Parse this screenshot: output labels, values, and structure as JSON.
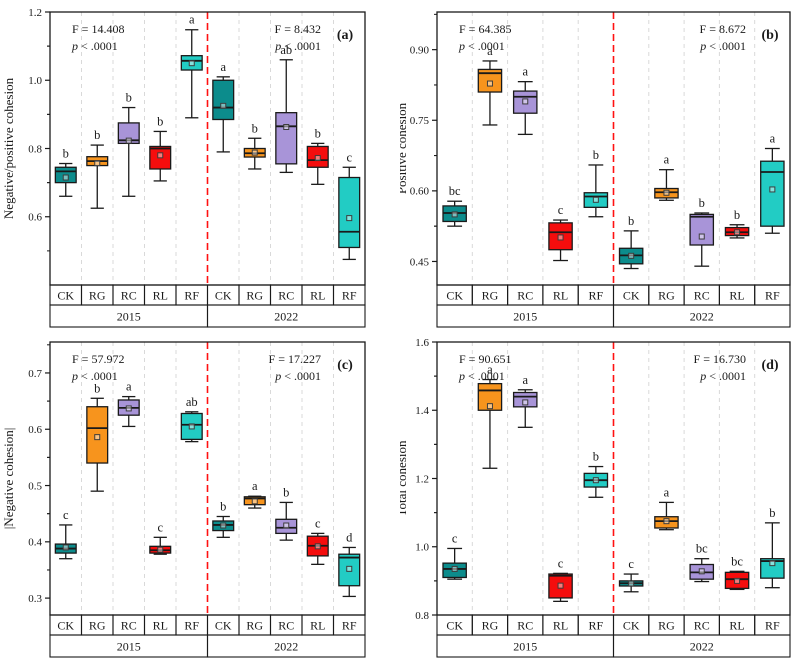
{
  "figure": {
    "background": "#ffffff",
    "treatment_colors": {
      "CK": "#0C8C8C",
      "RG": "#F7941D",
      "RC": "#A894D8",
      "RL": "#F50D0D",
      "RF": "#22CCC4"
    },
    "separator_color": "#FF1111",
    "gridline_color": "#D9D9D9",
    "box_border_color": "#1A1A1A"
  },
  "chart_data": [
    {
      "id": "a",
      "type": "boxplot",
      "panel_label": "(a)",
      "ylabel": "Negative/positive cohesion",
      "ylim": [
        0.4,
        1.2
      ],
      "yticks": [
        0.6,
        0.8,
        1.0,
        1.2
      ],
      "ytick_labels": [
        "0.6",
        "0.8",
        "1.0",
        "1.2"
      ],
      "grid": "vertical-dashed",
      "legend_position": "none",
      "year_groups": [
        "2015",
        "2022"
      ],
      "categories": [
        "CK",
        "RG",
        "RC",
        "RL",
        "RF",
        "CK",
        "RG",
        "RC",
        "RL",
        "RF"
      ],
      "stats_left": {
        "f_label": "F = 14.408",
        "p_label": "p < .0001"
      },
      "stats_right": {
        "f_label": "F = 8.432",
        "p_label": "p < .0001"
      },
      "boxes": [
        {
          "treatment": "CK",
          "year": "2015",
          "whisker_low": 0.66,
          "q1": 0.7,
          "median": 0.733,
          "q3": 0.745,
          "whisker_high": 0.756,
          "mean": 0.715,
          "letter": "b"
        },
        {
          "treatment": "RG",
          "year": "2015",
          "whisker_low": 0.625,
          "q1": 0.75,
          "median": 0.763,
          "q3": 0.776,
          "whisker_high": 0.81,
          "mean": 0.757,
          "letter": "b"
        },
        {
          "treatment": "RC",
          "year": "2015",
          "whisker_low": 0.66,
          "q1": 0.815,
          "median": 0.824,
          "q3": 0.875,
          "whisker_high": 0.92,
          "mean": 0.823,
          "letter": "b"
        },
        {
          "treatment": "RL",
          "year": "2015",
          "whisker_low": 0.705,
          "q1": 0.74,
          "median": 0.8,
          "q3": 0.806,
          "whisker_high": 0.85,
          "mean": 0.78,
          "letter": "b"
        },
        {
          "treatment": "RF",
          "year": "2015",
          "whisker_low": 0.89,
          "q1": 1.03,
          "median": 1.057,
          "q3": 1.072,
          "whisker_high": 1.148,
          "mean": 1.05,
          "letter": "a"
        },
        {
          "treatment": "CK",
          "year": "2022",
          "whisker_low": 0.79,
          "q1": 0.885,
          "median": 0.92,
          "q3": 1.0,
          "whisker_high": 1.01,
          "mean": 0.925,
          "letter": "a"
        },
        {
          "treatment": "RG",
          "year": "2022",
          "whisker_low": 0.74,
          "q1": 0.775,
          "median": 0.786,
          "q3": 0.8,
          "whisker_high": 0.83,
          "mean": 0.788,
          "letter": "b"
        },
        {
          "treatment": "RC",
          "year": "2022",
          "whisker_low": 0.73,
          "q1": 0.755,
          "median": 0.865,
          "q3": 0.905,
          "whisker_high": 1.06,
          "mean": 0.863,
          "letter": "ab"
        },
        {
          "treatment": "RL",
          "year": "2022",
          "whisker_low": 0.695,
          "q1": 0.745,
          "median": 0.766,
          "q3": 0.806,
          "whisker_high": 0.815,
          "mean": 0.772,
          "letter": "b"
        },
        {
          "treatment": "RF",
          "year": "2022",
          "whisker_low": 0.475,
          "q1": 0.51,
          "median": 0.556,
          "q3": 0.715,
          "whisker_high": 0.745,
          "mean": 0.596,
          "letter": "c"
        }
      ]
    },
    {
      "id": "b",
      "type": "boxplot",
      "panel_label": "(b)",
      "ylabel": "Positive cohesion",
      "ylim": [
        0.4,
        0.98
      ],
      "yticks": [
        0.45,
        0.6,
        0.75,
        0.9
      ],
      "ytick_labels": [
        "0.45",
        "0.60",
        "0.75",
        "0.90"
      ],
      "grid": "vertical-dashed",
      "legend_position": "none",
      "year_groups": [
        "2015",
        "2022"
      ],
      "categories": [
        "CK",
        "RG",
        "RC",
        "RL",
        "RF",
        "CK",
        "RG",
        "RC",
        "RL",
        "RF"
      ],
      "stats_left": {
        "f_label": "F = 64.385",
        "p_label": "p < .0001"
      },
      "stats_right": {
        "f_label": "F = 8.672",
        "p_label": "p < .0001"
      },
      "boxes": [
        {
          "treatment": "CK",
          "year": "2015",
          "whisker_low": 0.525,
          "q1": 0.535,
          "median": 0.553,
          "q3": 0.568,
          "whisker_high": 0.578,
          "mean": 0.55,
          "letter": "bc"
        },
        {
          "treatment": "RG",
          "year": "2015",
          "whisker_low": 0.74,
          "q1": 0.81,
          "median": 0.85,
          "q3": 0.858,
          "whisker_high": 0.876,
          "mean": 0.828,
          "letter": "a"
        },
        {
          "treatment": "RC",
          "year": "2015",
          "whisker_low": 0.72,
          "q1": 0.765,
          "median": 0.8,
          "q3": 0.812,
          "whisker_high": 0.832,
          "mean": 0.79,
          "letter": "a"
        },
        {
          "treatment": "RL",
          "year": "2015",
          "whisker_low": 0.452,
          "q1": 0.475,
          "median": 0.512,
          "q3": 0.532,
          "whisker_high": 0.538,
          "mean": 0.501,
          "letter": "c"
        },
        {
          "treatment": "RF",
          "year": "2015",
          "whisker_low": 0.545,
          "q1": 0.565,
          "median": 0.588,
          "q3": 0.596,
          "whisker_high": 0.655,
          "mean": 0.581,
          "letter": "b"
        },
        {
          "treatment": "CK",
          "year": "2022",
          "whisker_low": 0.435,
          "q1": 0.445,
          "median": 0.463,
          "q3": 0.478,
          "whisker_high": 0.515,
          "mean": 0.462,
          "letter": "b"
        },
        {
          "treatment": "RG",
          "year": "2022",
          "whisker_low": 0.58,
          "q1": 0.585,
          "median": 0.597,
          "q3": 0.605,
          "whisker_high": 0.645,
          "mean": 0.596,
          "letter": "a"
        },
        {
          "treatment": "RC",
          "year": "2022",
          "whisker_low": 0.44,
          "q1": 0.485,
          "median": 0.545,
          "q3": 0.55,
          "whisker_high": 0.553,
          "mean": 0.503,
          "letter": "b"
        },
        {
          "treatment": "RL",
          "year": "2022",
          "whisker_low": 0.5,
          "q1": 0.505,
          "median": 0.512,
          "q3": 0.522,
          "whisker_high": 0.528,
          "mean": 0.512,
          "letter": "b"
        },
        {
          "treatment": "RF",
          "year": "2022",
          "whisker_low": 0.51,
          "q1": 0.525,
          "median": 0.64,
          "q3": 0.663,
          "whisker_high": 0.69,
          "mean": 0.603,
          "letter": "a"
        }
      ]
    },
    {
      "id": "c",
      "type": "boxplot",
      "panel_label": "(c)",
      "ylabel": "|Negative cohesion|",
      "ylim": [
        0.27,
        0.755
      ],
      "yticks": [
        0.3,
        0.4,
        0.5,
        0.6,
        0.7
      ],
      "ytick_labels": [
        "0.3",
        "0.4",
        "0.5",
        "0.6",
        "0.7"
      ],
      "grid": "vertical-dashed",
      "legend_position": "none",
      "year_groups": [
        "2015",
        "2022"
      ],
      "categories": [
        "CK",
        "RG",
        "RC",
        "RL",
        "RF",
        "CK",
        "RG",
        "RC",
        "RL",
        "RF"
      ],
      "stats_left": {
        "f_label": "F = 57.972",
        "p_label": "p < .0001"
      },
      "stats_right": {
        "f_label": "F = 17.227",
        "p_label": "p < .0001"
      },
      "boxes": [
        {
          "treatment": "CK",
          "year": "2015",
          "whisker_low": 0.37,
          "q1": 0.38,
          "median": 0.388,
          "q3": 0.396,
          "whisker_high": 0.43,
          "mean": 0.39,
          "letter": "c"
        },
        {
          "treatment": "RG",
          "year": "2015",
          "whisker_low": 0.49,
          "q1": 0.54,
          "median": 0.602,
          "q3": 0.64,
          "whisker_high": 0.655,
          "mean": 0.586,
          "letter": "b"
        },
        {
          "treatment": "RC",
          "year": "2015",
          "whisker_low": 0.605,
          "q1": 0.625,
          "median": 0.638,
          "q3": 0.652,
          "whisker_high": 0.658,
          "mean": 0.637,
          "letter": "a"
        },
        {
          "treatment": "RL",
          "year": "2015",
          "whisker_low": 0.378,
          "q1": 0.38,
          "median": 0.385,
          "q3": 0.392,
          "whisker_high": 0.408,
          "mean": 0.386,
          "letter": "c"
        },
        {
          "treatment": "RF",
          "year": "2015",
          "whisker_low": 0.578,
          "q1": 0.582,
          "median": 0.608,
          "q3": 0.628,
          "whisker_high": 0.631,
          "mean": 0.605,
          "letter": "ab"
        },
        {
          "treatment": "CK",
          "year": "2022",
          "whisker_low": 0.408,
          "q1": 0.42,
          "median": 0.43,
          "q3": 0.437,
          "whisker_high": 0.445,
          "mean": 0.429,
          "letter": "b"
        },
        {
          "treatment": "RG",
          "year": "2022",
          "whisker_low": 0.46,
          "q1": 0.466,
          "median": 0.477,
          "q3": 0.48,
          "whisker_high": 0.481,
          "mean": 0.472,
          "letter": "a"
        },
        {
          "treatment": "RC",
          "year": "2022",
          "whisker_low": 0.403,
          "q1": 0.415,
          "median": 0.425,
          "q3": 0.44,
          "whisker_high": 0.47,
          "mean": 0.429,
          "letter": "b"
        },
        {
          "treatment": "RL",
          "year": "2022",
          "whisker_low": 0.36,
          "q1": 0.375,
          "median": 0.393,
          "q3": 0.41,
          "whisker_high": 0.415,
          "mean": 0.392,
          "letter": "c"
        },
        {
          "treatment": "RF",
          "year": "2022",
          "whisker_low": 0.303,
          "q1": 0.322,
          "median": 0.372,
          "q3": 0.378,
          "whisker_high": 0.39,
          "mean": 0.352,
          "letter": "d"
        }
      ]
    },
    {
      "id": "d",
      "type": "boxplot",
      "panel_label": "(d)",
      "ylabel": "Total cohesion",
      "ylim": [
        0.8,
        1.6
      ],
      "yticks": [
        0.8,
        1.0,
        1.2,
        1.4,
        1.6
      ],
      "ytick_labels": [
        "0.8",
        "1.0",
        "1.2",
        "1.4",
        "1.6"
      ],
      "grid": "vertical-dashed",
      "legend_position": "none",
      "year_groups": [
        "2015",
        "2022"
      ],
      "categories": [
        "CK",
        "RG",
        "RC",
        "RL",
        "RF",
        "CK",
        "RG",
        "RC",
        "RL",
        "RF"
      ],
      "stats_left": {
        "f_label": "F = 90.651",
        "p_label": "p < .0001"
      },
      "stats_right": {
        "f_label": "F = 16.730",
        "p_label": "p < .0001"
      },
      "boxes": [
        {
          "treatment": "CK",
          "year": "2015",
          "whisker_low": 0.905,
          "q1": 0.91,
          "median": 0.935,
          "q3": 0.952,
          "whisker_high": 0.995,
          "mean": 0.935,
          "letter": "c"
        },
        {
          "treatment": "RG",
          "year": "2015",
          "whisker_low": 1.23,
          "q1": 1.4,
          "median": 1.458,
          "q3": 1.478,
          "whisker_high": 1.49,
          "mean": 1.412,
          "letter": "a"
        },
        {
          "treatment": "RC",
          "year": "2015",
          "whisker_low": 1.35,
          "q1": 1.41,
          "median": 1.44,
          "q3": 1.452,
          "whisker_high": 1.46,
          "mean": 1.423,
          "letter": "a"
        },
        {
          "treatment": "RL",
          "year": "2015",
          "whisker_low": 0.84,
          "q1": 0.85,
          "median": 0.915,
          "q3": 0.92,
          "whisker_high": 0.922,
          "mean": 0.886,
          "letter": "c"
        },
        {
          "treatment": "RF",
          "year": "2015",
          "whisker_low": 1.145,
          "q1": 1.175,
          "median": 1.195,
          "q3": 1.215,
          "whisker_high": 1.235,
          "mean": 1.195,
          "letter": "b"
        },
        {
          "treatment": "CK",
          "year": "2022",
          "whisker_low": 0.868,
          "q1": 0.885,
          "median": 0.893,
          "q3": 0.9,
          "whisker_high": 0.92,
          "mean": 0.892,
          "letter": "c"
        },
        {
          "treatment": "RG",
          "year": "2022",
          "whisker_low": 1.05,
          "q1": 1.055,
          "median": 1.075,
          "q3": 1.088,
          "whisker_high": 1.13,
          "mean": 1.075,
          "letter": "a"
        },
        {
          "treatment": "RC",
          "year": "2022",
          "whisker_low": 0.898,
          "q1": 0.905,
          "median": 0.925,
          "q3": 0.948,
          "whisker_high": 0.965,
          "mean": 0.928,
          "letter": "bc"
        },
        {
          "treatment": "RL",
          "year": "2022",
          "whisker_low": 0.875,
          "q1": 0.878,
          "median": 0.905,
          "q3": 0.925,
          "whisker_high": 0.928,
          "mean": 0.9,
          "letter": "bc"
        },
        {
          "treatment": "RF",
          "year": "2022",
          "whisker_low": 0.88,
          "q1": 0.908,
          "median": 0.958,
          "q3": 0.965,
          "whisker_high": 1.07,
          "mean": 0.952,
          "letter": "b"
        }
      ]
    }
  ]
}
